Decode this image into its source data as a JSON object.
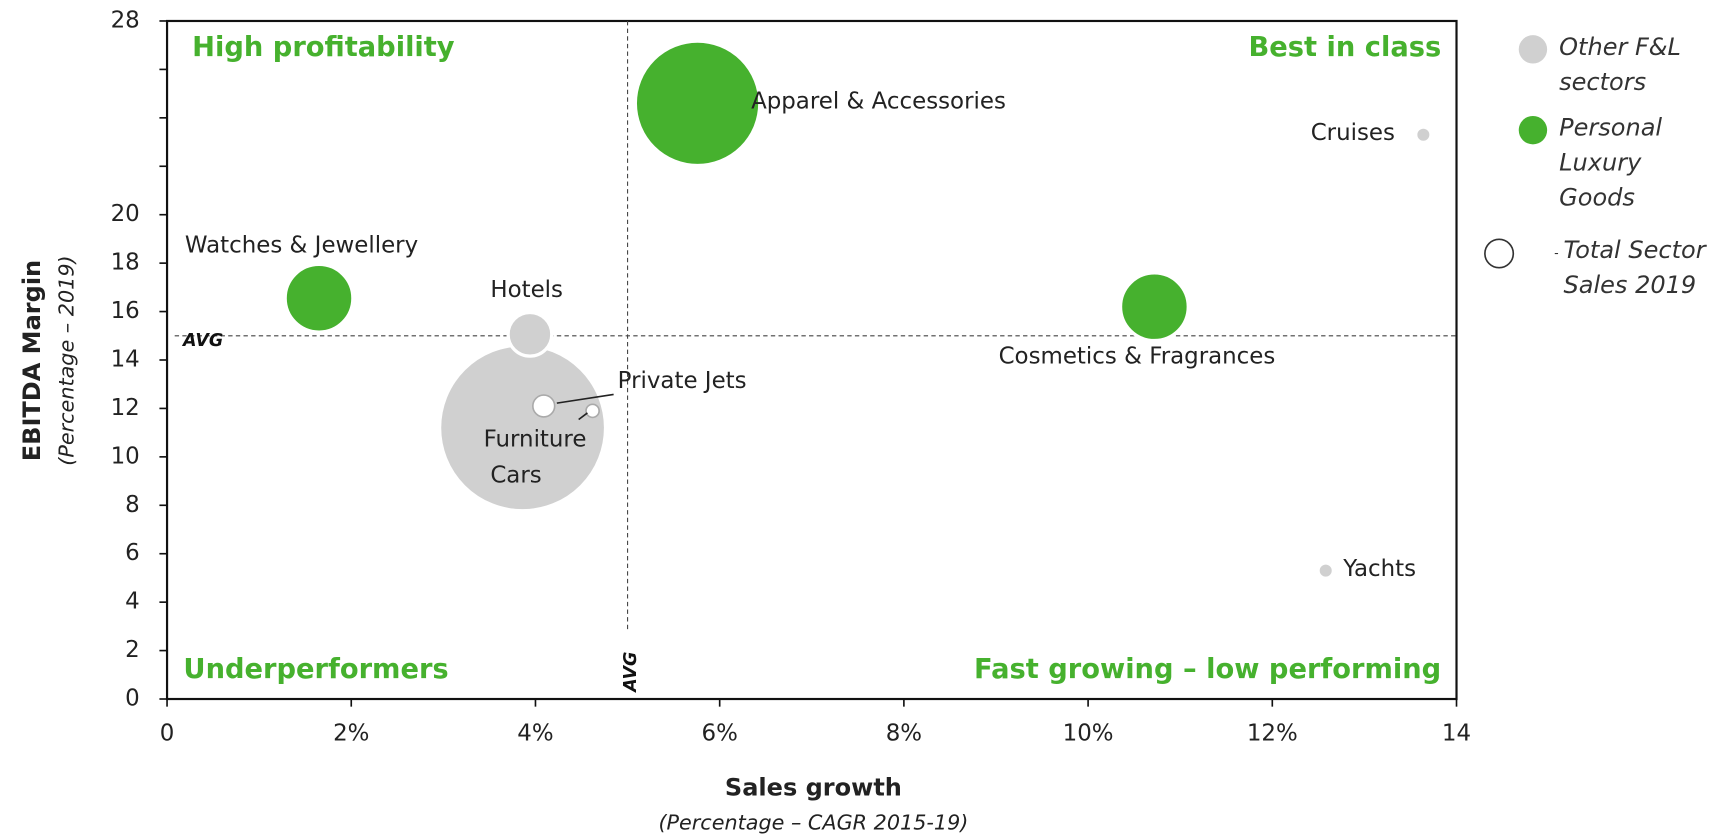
{
  "chart_data": {
    "type": "bubble",
    "xlabel": "Sales growth",
    "xsublabel": "(Percentage – CAGR 2015-19)",
    "ylabel": "EBITDA Margin",
    "ysublabel": "(Percentage – 2019)",
    "quadrants": [
      "High profitability",
      "Best in class",
      "Underperformers",
      "Fast growing – low performing"
    ],
    "avg_label": "AVG",
    "avg_x": 5,
    "avg_y": 15,
    "size_legend": "Total Sector Sales 2019",
    "xlim": [
      0,
      14
    ],
    "ylim": [
      0,
      28
    ],
    "xticks": [
      0,
      {
        "value": 2,
        "label": "2%"
      },
      {
        "value": 4,
        "label": "4%"
      },
      {
        "value": 6,
        "label": "6%"
      },
      {
        "value": 8,
        "label": "8%"
      },
      {
        "value": 10,
        "label": "10%"
      },
      {
        "value": 12,
        "label": "12%"
      },
      14
    ],
    "yticks": [
      0,
      2,
      4,
      6,
      8,
      10,
      12,
      14,
      16,
      18,
      20,
      28
    ],
    "minor_yticks": [
      22,
      24,
      26
    ],
    "series": [
      {
        "name": "Other F&L sectors",
        "color": "#d0d0d0",
        "points": [
          {
            "label": "Cars",
            "x": 3.86,
            "y": 11.2,
            "size": 76
          },
          {
            "label": "Hotels",
            "x": 3.94,
            "y": 15.06,
            "size": 20
          },
          {
            "label": "Furniture",
            "x": 4.09,
            "y": 12.1,
            "size": 10
          },
          {
            "label": "Private Jets",
            "x": 4.62,
            "y": 11.9,
            "size": 6
          },
          {
            "label": "Cruises",
            "x": 13.64,
            "y": 23.3,
            "size": 7
          },
          {
            "label": "Yachts",
            "x": 12.58,
            "y": 5.3,
            "size": 7
          }
        ]
      },
      {
        "name": "Personal Luxury Goods",
        "color": "#46b12e",
        "points": [
          {
            "label": "Apparel & Accessories",
            "x": 5.76,
            "y": 24.6,
            "size": 57
          },
          {
            "label": "Watches & Jewellery",
            "x": 1.65,
            "y": 16.55,
            "size": 31
          },
          {
            "label": "Cosmetics & Fragrances",
            "x": 10.72,
            "y": 16.2,
            "size": 31
          }
        ]
      }
    ]
  }
}
